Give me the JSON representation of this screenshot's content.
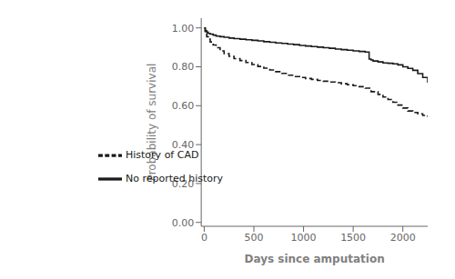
{
  "chart_data": {
    "type": "step",
    "xlabel": "Days since amputation",
    "ylabel": "Probability of survival",
    "xlim": [
      -30,
      2250
    ],
    "ylim": [
      -0.02,
      1.05
    ],
    "xticks": [
      0,
      500,
      1000,
      1500,
      2000
    ],
    "yticks": [
      {
        "value": 0.0,
        "label": "0.00"
      },
      {
        "value": 0.2,
        "label": "0.20"
      },
      {
        "value": 0.4,
        "label": "0.40"
      },
      {
        "value": 0.6,
        "label": "0.60"
      },
      {
        "value": 0.8,
        "label": "0.80"
      },
      {
        "value": 1.0,
        "label": "1.00"
      }
    ],
    "grid": false,
    "legend": "lower left",
    "series": [
      {
        "name": "No reported history",
        "color": "#1a1a1a",
        "line_style": "solid",
        "x": [
          0,
          10,
          25,
          40,
          60,
          90,
          120,
          160,
          200,
          250,
          300,
          360,
          420,
          480,
          540,
          600,
          660,
          720,
          780,
          840,
          900,
          960,
          1020,
          1080,
          1140,
          1200,
          1260,
          1320,
          1380,
          1440,
          1500,
          1560,
          1620,
          1660,
          1680,
          1700,
          1750,
          1800,
          1850,
          1900,
          1950,
          2000,
          2050,
          2100,
          2150,
          2200,
          2250
        ],
        "values": [
          1.0,
          0.985,
          0.978,
          0.972,
          0.968,
          0.963,
          0.958,
          0.955,
          0.952,
          0.948,
          0.945,
          0.942,
          0.939,
          0.936,
          0.933,
          0.929,
          0.926,
          0.923,
          0.92,
          0.917,
          0.914,
          0.91,
          0.907,
          0.904,
          0.901,
          0.898,
          0.895,
          0.891,
          0.888,
          0.885,
          0.882,
          0.879,
          0.876,
          0.84,
          0.835,
          0.83,
          0.825,
          0.82,
          0.818,
          0.815,
          0.81,
          0.8,
          0.792,
          0.782,
          0.765,
          0.745,
          0.718
        ]
      },
      {
        "name": "History of CAD",
        "color": "#1a1a1a",
        "line_style": "dashed",
        "x": [
          0,
          10,
          25,
          40,
          60,
          90,
          120,
          160,
          200,
          250,
          300,
          360,
          420,
          480,
          540,
          600,
          660,
          720,
          780,
          840,
          900,
          960,
          1020,
          1080,
          1140,
          1200,
          1260,
          1320,
          1380,
          1440,
          1500,
          1560,
          1620,
          1680,
          1750,
          1800,
          1850,
          1900,
          1950,
          2000,
          2050,
          2100,
          2150,
          2200,
          2250
        ],
        "values": [
          1.0,
          0.97,
          0.955,
          0.942,
          0.928,
          0.912,
          0.898,
          0.882,
          0.868,
          0.854,
          0.842,
          0.832,
          0.822,
          0.812,
          0.802,
          0.793,
          0.784,
          0.775,
          0.766,
          0.757,
          0.75,
          0.745,
          0.74,
          0.735,
          0.73,
          0.726,
          0.722,
          0.718,
          0.713,
          0.708,
          0.703,
          0.698,
          0.69,
          0.672,
          0.658,
          0.645,
          0.632,
          0.618,
          0.603,
          0.588,
          0.573,
          0.565,
          0.558,
          0.55,
          0.543
        ]
      }
    ]
  }
}
